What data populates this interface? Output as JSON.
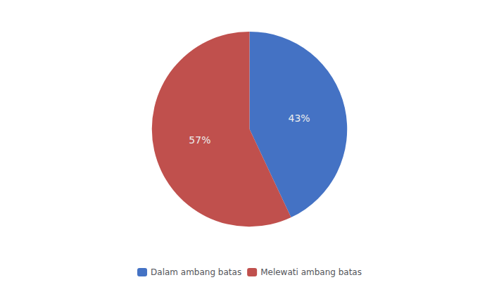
{
  "chart_data": {
    "type": "pie",
    "categories": [
      "Dalam ambang batas",
      "Melewati ambang batas"
    ],
    "values": [
      43,
      57
    ],
    "value_labels": [
      "43%",
      "57%"
    ],
    "colors": [
      "#4472C4",
      "#C0504D"
    ],
    "data_labels": true,
    "legend": "bottom"
  }
}
